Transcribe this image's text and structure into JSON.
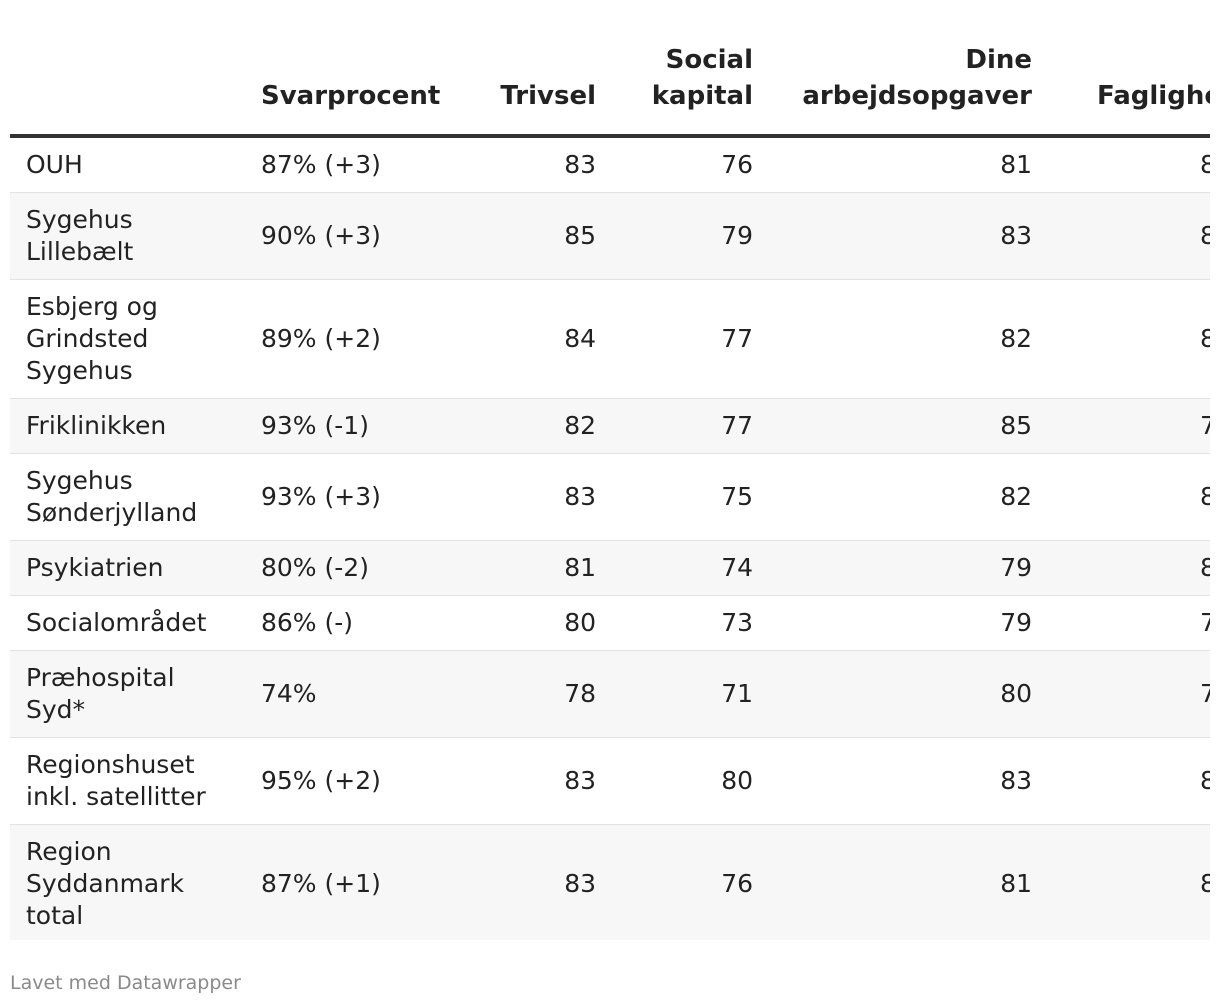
{
  "table": {
    "headers": [
      "Svarprocent",
      "Trivsel",
      "Social kapital",
      "Dine arbejdsopgaver",
      "Faglighe"
    ],
    "rows": [
      [
        "OUH",
        "87% (+3)",
        "83",
        "76",
        "81",
        "8"
      ],
      [
        "Sygehus Lillebælt",
        "90% (+3)",
        "85",
        "79",
        "83",
        "8"
      ],
      [
        "Esbjerg og Grindsted Sygehus",
        "89% (+2)",
        "84",
        "77",
        "82",
        "8"
      ],
      [
        "Friklinikken",
        "93% (-1)",
        "82",
        "77",
        "85",
        "7"
      ],
      [
        "Sygehus Sønderjylland",
        "93% (+3)",
        "83",
        "75",
        "82",
        "8"
      ],
      [
        "Psykiatrien",
        "80% (-2)",
        "81",
        "74",
        "79",
        "8"
      ],
      [
        "Socialområdet",
        "86% (-)",
        "80",
        "73",
        "79",
        "7"
      ],
      [
        "Præhospital Syd*",
        "74%",
        "78",
        "71",
        "80",
        "7"
      ],
      [
        "Regionshuset inkl. satellitter",
        "95% (+2)",
        "83",
        "80",
        "83",
        "8"
      ],
      [
        "Region Syddanmark total",
        "87% (+1)",
        "83",
        "76",
        "81",
        "8"
      ]
    ]
  },
  "footer": "Lavet med Datawrapper"
}
